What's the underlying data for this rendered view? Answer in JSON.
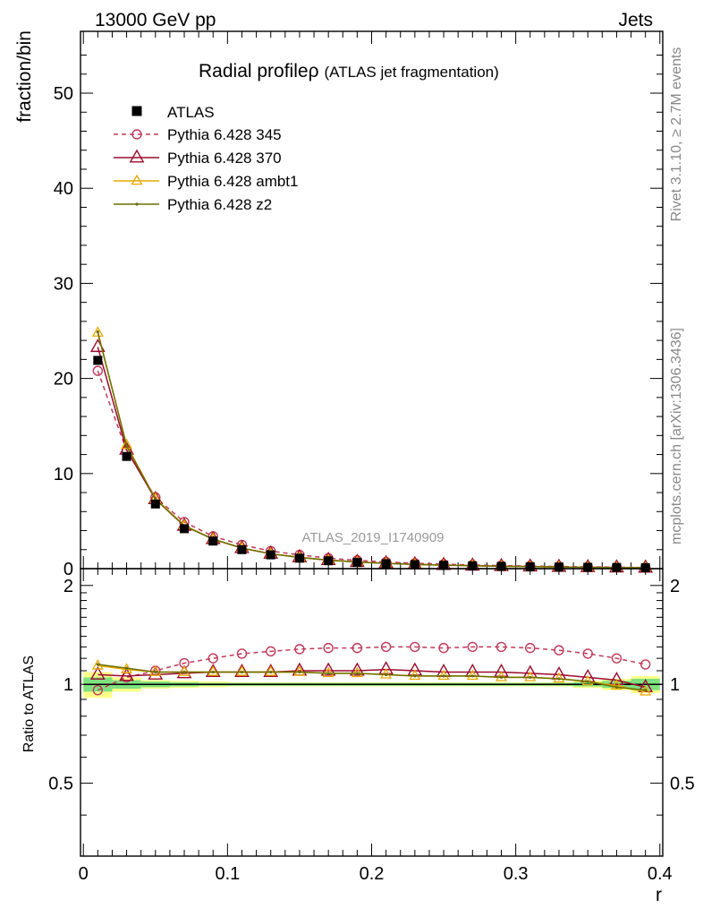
{
  "header": {
    "energy_label": "13000 GeV pp",
    "category_label": "Jets"
  },
  "side_labels": {
    "rivet": "Rivet 3.1.10, ≥ 2.7M events",
    "mcplots": "mcplots.cern.ch [arXiv:1306.3436]"
  },
  "chart_data": {
    "type": "line",
    "title": "Radial profileρ",
    "subtitle": "(ATLAS jet fragmentation)",
    "analysis_id": "ATLAS_2019_I1740909",
    "xlabel": "r",
    "ylabel": "fraction/bin",
    "ratio_ylabel": "Ratio to ATLAS",
    "xlim": [
      -0.002,
      0.402
    ],
    "ylim": [
      0,
      56.5
    ],
    "ratio_ylim": [
      0.3,
      2.25
    ],
    "x_ticks": [
      0,
      0.1,
      0.2,
      0.3,
      0.4
    ],
    "x_tick_labels": [
      "0",
      "0.1",
      "0.2",
      "0.3",
      "0.4"
    ],
    "y_ticks": [
      0,
      10,
      20,
      30,
      40,
      50
    ],
    "y_tick_labels": [
      "0",
      "10",
      "20",
      "30",
      "40",
      "50"
    ],
    "ratio_ticks": [
      0.5,
      1,
      2
    ],
    "ratio_tick_labels": [
      "0.5",
      "1",
      "2"
    ],
    "grid": false,
    "legend_position": "top-left",
    "x": [
      0.01,
      0.03,
      0.05,
      0.07,
      0.09,
      0.11,
      0.13,
      0.15,
      0.17,
      0.19,
      0.21,
      0.23,
      0.25,
      0.27,
      0.29,
      0.31,
      0.33,
      0.35,
      0.37,
      0.39
    ],
    "data": {
      "name": "ATLAS",
      "values": [
        21.9,
        11.8,
        6.8,
        4.2,
        2.9,
        2.0,
        1.45,
        1.1,
        0.83,
        0.65,
        0.52,
        0.42,
        0.35,
        0.29,
        0.24,
        0.2,
        0.17,
        0.14,
        0.12,
        0.1
      ]
    },
    "series": [
      {
        "name": "Pythia 6.428 345",
        "color": "#c0395a",
        "marker": "circle",
        "dashed": true,
        "values": [
          20.8,
          12.4,
          7.5,
          4.9,
          3.4,
          2.5,
          1.85,
          1.45,
          1.1,
          0.87,
          0.7,
          0.57,
          0.47,
          0.39,
          0.32,
          0.27,
          0.23,
          0.19,
          0.16,
          0.12
        ],
        "ratio": [
          0.96,
          1.05,
          1.1,
          1.16,
          1.2,
          1.24,
          1.26,
          1.28,
          1.29,
          1.29,
          1.3,
          1.3,
          1.29,
          1.3,
          1.3,
          1.29,
          1.27,
          1.24,
          1.2,
          1.15
        ]
      },
      {
        "name": "Pythia 6.428 370",
        "color": "#9b0a2e",
        "marker": "triangle",
        "dashed": false,
        "values": [
          23.3,
          12.5,
          7.3,
          4.5,
          3.1,
          2.15,
          1.57,
          1.19,
          0.9,
          0.7,
          0.56,
          0.45,
          0.38,
          0.31,
          0.26,
          0.22,
          0.18,
          0.15,
          0.12,
          0.1
        ],
        "ratio": [
          1.07,
          1.06,
          1.07,
          1.08,
          1.09,
          1.09,
          1.09,
          1.1,
          1.1,
          1.1,
          1.11,
          1.1,
          1.09,
          1.09,
          1.09,
          1.08,
          1.07,
          1.05,
          1.03,
          0.98
        ]
      },
      {
        "name": "Pythia 6.428 ambt1",
        "color": "#e8a800",
        "marker": "small-triangle",
        "dashed": false,
        "values": [
          24.8,
          13.0,
          7.35,
          4.55,
          3.12,
          2.17,
          1.57,
          1.19,
          0.9,
          0.7,
          0.56,
          0.45,
          0.37,
          0.31,
          0.25,
          0.21,
          0.18,
          0.14,
          0.12,
          0.09
        ],
        "ratio": [
          1.14,
          1.11,
          1.09,
          1.09,
          1.09,
          1.09,
          1.09,
          1.09,
          1.08,
          1.08,
          1.07,
          1.06,
          1.06,
          1.06,
          1.05,
          1.05,
          1.04,
          1.02,
          0.99,
          0.95
        ]
      },
      {
        "name": "Pythia 6.428 z2",
        "color": "#6b6e00",
        "marker": "dot",
        "dashed": false,
        "values": [
          24.9,
          12.9,
          7.3,
          4.5,
          3.1,
          2.16,
          1.56,
          1.18,
          0.89,
          0.7,
          0.55,
          0.45,
          0.37,
          0.31,
          0.25,
          0.21,
          0.18,
          0.14,
          0.12,
          0.09
        ],
        "ratio": [
          1.15,
          1.12,
          1.09,
          1.09,
          1.09,
          1.09,
          1.09,
          1.09,
          1.08,
          1.08,
          1.07,
          1.06,
          1.06,
          1.06,
          1.05,
          1.05,
          1.04,
          1.02,
          0.98,
          0.96
        ]
      }
    ],
    "uncertainty_bands": {
      "stat_color": "#7fe07f",
      "syst_color": "#ffff88",
      "stat_lo": [
        0.95,
        0.97,
        0.98,
        0.985,
        0.99,
        0.99,
        0.99,
        0.99,
        0.99,
        0.99,
        0.99,
        0.99,
        0.99,
        0.99,
        0.99,
        0.99,
        0.99,
        0.985,
        0.975,
        0.96
      ],
      "stat_hi": [
        1.05,
        1.03,
        1.02,
        1.015,
        1.01,
        1.01,
        1.01,
        1.01,
        1.01,
        1.01,
        1.01,
        1.01,
        1.01,
        1.01,
        1.01,
        1.01,
        1.01,
        1.015,
        1.025,
        1.04
      ],
      "syst_lo": [
        0.91,
        0.95,
        0.97,
        0.975,
        0.98,
        0.985,
        0.985,
        0.985,
        0.985,
        0.985,
        0.985,
        0.985,
        0.985,
        0.985,
        0.985,
        0.985,
        0.985,
        0.975,
        0.96,
        0.94
      ],
      "syst_hi": [
        1.09,
        1.05,
        1.03,
        1.025,
        1.02,
        1.015,
        1.015,
        1.015,
        1.015,
        1.015,
        1.015,
        1.015,
        1.015,
        1.015,
        1.015,
        1.015,
        1.015,
        1.025,
        1.04,
        1.06
      ]
    }
  }
}
